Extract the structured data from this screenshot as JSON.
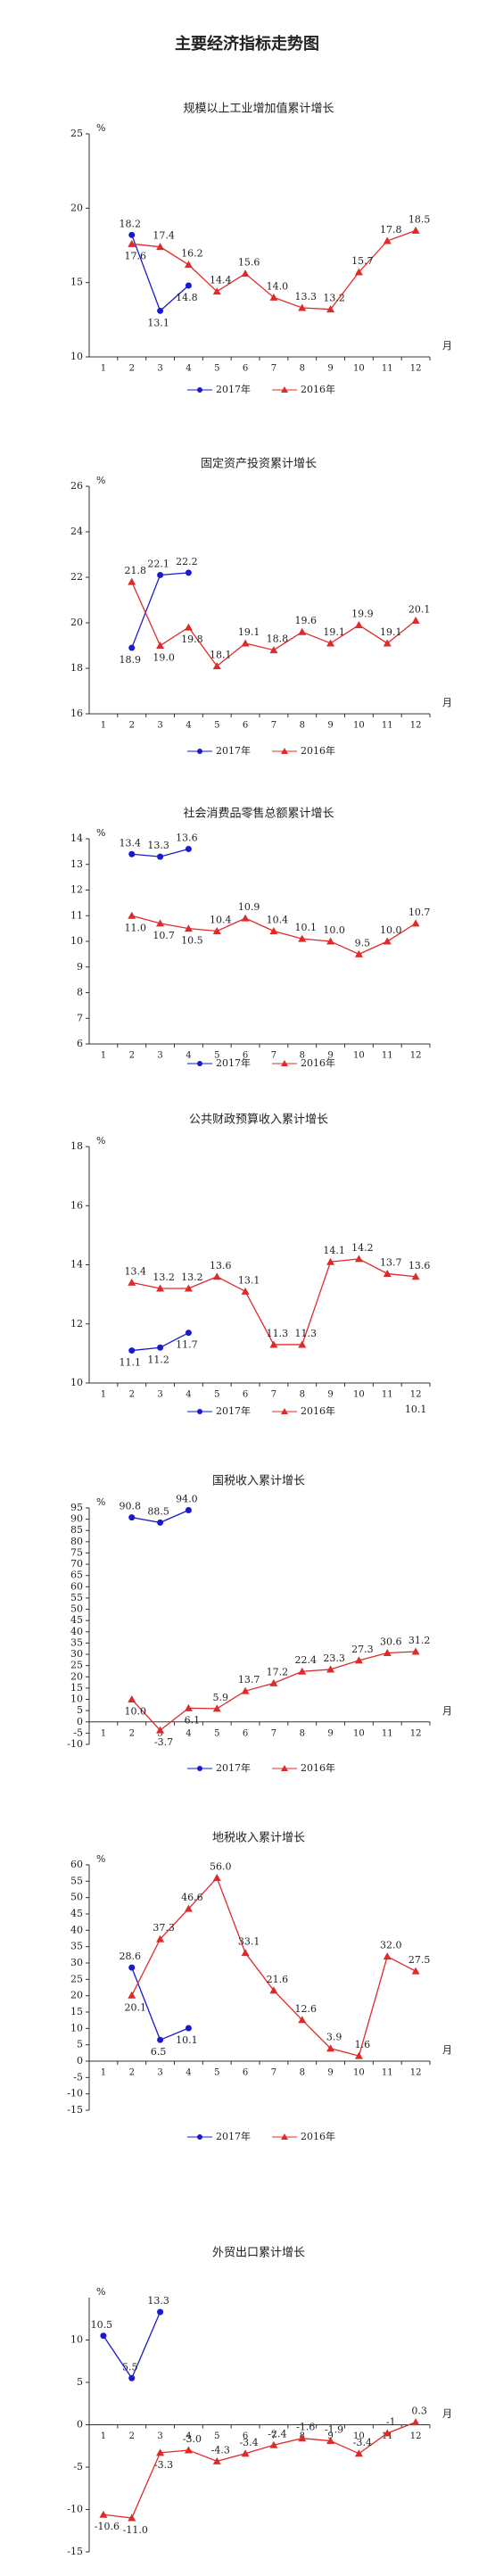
{
  "title": "主要经济指标走势图",
  "chart_data": [
    {
      "type": "line",
      "title": "规模以上工业增加值累计增长",
      "y_label": "%",
      "x_label": "月",
      "categories": [
        "1",
        "2",
        "3",
        "4",
        "5",
        "6",
        "7",
        "8",
        "9",
        "10",
        "11",
        "12"
      ],
      "ylim": [
        10,
        25
      ],
      "yticks": [
        10,
        15,
        20,
        25
      ],
      "series": [
        {
          "name": "2017年",
          "color": "#1a1acc",
          "values": [
            null,
            18.2,
            13.1,
            14.8,
            null,
            null,
            null,
            null,
            null,
            null,
            null,
            null
          ],
          "value_labels": [
            null,
            "18.2",
            "13.1",
            "14.8",
            null,
            null,
            null,
            null,
            null,
            null,
            null,
            null
          ]
        },
        {
          "name": "2016年",
          "color": "#e02a2a",
          "values": [
            null,
            17.6,
            17.4,
            16.2,
            14.4,
            15.6,
            14.0,
            13.3,
            13.2,
            15.7,
            17.8,
            18.5
          ],
          "value_labels": [
            null,
            "17.6",
            "17.4",
            "16.2",
            "14.4",
            "15.6",
            "14.0",
            "13.3",
            "13.2",
            "15.7",
            "17.8",
            "18.5"
          ]
        }
      ]
    },
    {
      "type": "line",
      "title": "固定资产投资累计增长",
      "y_label": "%",
      "x_label": "月",
      "categories": [
        "1",
        "2",
        "3",
        "4",
        "5",
        "6",
        "7",
        "8",
        "9",
        "10",
        "11",
        "12"
      ],
      "ylim": [
        16,
        26
      ],
      "yticks": [
        16,
        18,
        20,
        22,
        24,
        26
      ],
      "series": [
        {
          "name": "2017年",
          "color": "#1a1acc",
          "values": [
            null,
            18.9,
            22.1,
            22.2,
            null,
            null,
            null,
            null,
            null,
            null,
            null,
            null
          ],
          "value_labels": [
            null,
            "18.9",
            "22.1",
            "22.2",
            null,
            null,
            null,
            null,
            null,
            null,
            null,
            null
          ]
        },
        {
          "name": "2016年",
          "color": "#e02a2a",
          "values": [
            null,
            21.8,
            19.0,
            19.8,
            18.1,
            19.1,
            18.8,
            19.6,
            19.1,
            19.9,
            19.1,
            20.1
          ],
          "value_labels": [
            null,
            "21.8",
            "19.0",
            "19.8",
            "18.1",
            "19.1",
            "18.8",
            "19.6",
            "19.1",
            "19.9",
            "19.1",
            "20.1"
          ]
        }
      ]
    },
    {
      "type": "line",
      "title": "社会消费品零售总额累计增长",
      "y_label": "%",
      "categories": [
        "1",
        "2",
        "3",
        "4",
        "5",
        "6",
        "7",
        "8",
        "9",
        "10",
        "11",
        "12"
      ],
      "ylim": [
        6,
        14
      ],
      "yticks": [
        6,
        7,
        8,
        9,
        10,
        11,
        12,
        13,
        14
      ],
      "series": [
        {
          "name": "2017年",
          "color": "#1a1acc",
          "values": [
            null,
            13.4,
            13.3,
            13.6,
            null,
            null,
            null,
            null,
            null,
            null,
            null,
            null
          ],
          "value_labels": [
            null,
            "13.4",
            "13.3",
            "13.6",
            null,
            null,
            null,
            null,
            null,
            null,
            null,
            null
          ]
        },
        {
          "name": "2016年",
          "color": "#e02a2a",
          "values": [
            null,
            11.0,
            10.7,
            10.5,
            10.4,
            10.9,
            10.4,
            10.1,
            10.0,
            9.5,
            10.0,
            10.7
          ],
          "value_labels": [
            null,
            "11.0",
            "10.7",
            "10.5",
            "10.4",
            "10.9",
            "10.4",
            "10.1",
            "10.0",
            "9.5",
            "10.0",
            "10.7"
          ]
        }
      ]
    },
    {
      "type": "line",
      "title": "公共财政预算收入累计增长",
      "y_label": "%",
      "categories": [
        "1",
        "2",
        "3",
        "4",
        "5",
        "6",
        "7",
        "8",
        "9",
        "10",
        "11",
        "12"
      ],
      "ylim": [
        10,
        18
      ],
      "yticks": [
        10,
        12,
        14,
        16,
        18
      ],
      "annotations": [
        "10.1"
      ],
      "series": [
        {
          "name": "2017年",
          "color": "#1a1acc",
          "values": [
            null,
            11.1,
            11.2,
            11.7,
            null,
            null,
            null,
            null,
            null,
            null,
            null,
            null
          ],
          "value_labels": [
            null,
            "11.1",
            "11.2",
            "11.7",
            null,
            null,
            null,
            null,
            null,
            null,
            null,
            null
          ]
        },
        {
          "name": "2016年",
          "color": "#e02a2a",
          "values": [
            null,
            13.4,
            13.2,
            13.2,
            13.6,
            13.1,
            11.3,
            11.3,
            14.1,
            14.2,
            13.7,
            13.6
          ],
          "value_labels": [
            null,
            "13.4",
            "13.2",
            "13.2",
            "13.6",
            "13.1",
            "11.3",
            "11.3",
            "14.1",
            "14.2",
            "13.7",
            "13.6"
          ]
        }
      ]
    },
    {
      "type": "line",
      "title": "国税收入累计增长",
      "y_label": "%",
      "x_label": "月",
      "categories": [
        "1",
        "2",
        "3",
        "4",
        "5",
        "6",
        "7",
        "8",
        "9",
        "10",
        "11",
        "12"
      ],
      "ylim": [
        -10,
        95
      ],
      "yticks": [
        -10,
        -5,
        0,
        5,
        10,
        15,
        20,
        25,
        30,
        35,
        40,
        45,
        50,
        55,
        60,
        65,
        70,
        75,
        80,
        85,
        90,
        95
      ],
      "series": [
        {
          "name": "2017年",
          "color": "#1a1acc",
          "values": [
            null,
            90.8,
            88.5,
            94.0,
            null,
            null,
            null,
            null,
            null,
            null,
            null,
            null
          ],
          "value_labels": [
            null,
            "90.8",
            "88.5",
            "94.0",
            null,
            null,
            null,
            null,
            null,
            null,
            null,
            null
          ]
        },
        {
          "name": "2016年",
          "color": "#e02a2a",
          "values": [
            null,
            10.0,
            -3.7,
            6.1,
            5.9,
            13.7,
            17.2,
            22.4,
            23.3,
            27.3,
            30.6,
            31.2
          ],
          "value_labels": [
            null,
            "10.0",
            "-3.7",
            "6.1",
            "5.9",
            "13.7",
            "17.2",
            "22.4",
            "23.3",
            "27.3",
            "30.6",
            "31.2"
          ]
        }
      ]
    },
    {
      "type": "line",
      "title": "地税收入累计增长",
      "y_label": "%",
      "x_label": "月",
      "categories": [
        "1",
        "2",
        "3",
        "4",
        "5",
        "6",
        "7",
        "8",
        "9",
        "10",
        "11",
        "12"
      ],
      "ylim": [
        -15,
        60
      ],
      "yticks": [
        -15,
        -10,
        -5,
        0,
        5,
        10,
        15,
        20,
        25,
        30,
        35,
        40,
        45,
        50,
        55,
        60
      ],
      "series": [
        {
          "name": "2017年",
          "color": "#1a1acc",
          "values": [
            null,
            28.6,
            6.5,
            10.1,
            null,
            null,
            null,
            null,
            null,
            null,
            null,
            null
          ],
          "value_labels": [
            null,
            "28.6",
            "6.5",
            "10.1",
            null,
            null,
            null,
            null,
            null,
            null,
            null,
            null
          ]
        },
        {
          "name": "2016年",
          "color": "#e02a2a",
          "values": [
            null,
            20.1,
            37.3,
            46.6,
            56.0,
            33.1,
            21.6,
            12.6,
            3.9,
            1.6,
            32.0,
            27.5
          ],
          "value_labels": [
            null,
            "20.1",
            "37.3",
            "46.6",
            "56.0",
            "33.1",
            "21.6",
            "12.6",
            "3.9",
            "1.6",
            "32.0",
            "27.5"
          ]
        }
      ]
    },
    {
      "type": "line",
      "title": "外贸出口累计增长",
      "y_label": "%",
      "x_label": "月",
      "legend": false,
      "categories": [
        "1",
        "2",
        "3",
        "4",
        "5",
        "6",
        "7",
        "8",
        "9",
        "10",
        "11",
        "12"
      ],
      "ylim": [
        -15,
        15
      ],
      "yticks": [
        -15,
        -10,
        -5,
        0,
        5,
        10
      ],
      "series": [
        {
          "name": "2017年",
          "color": "#1a1acc",
          "values": [
            10.5,
            5.5,
            13.3,
            null,
            null,
            null,
            null,
            null,
            null,
            null,
            null,
            null
          ],
          "value_labels": [
            "10.5",
            "5.5",
            "13.3",
            null,
            null,
            null,
            null,
            null,
            null,
            null,
            null,
            null
          ]
        },
        {
          "name": "2016年",
          "color": "#e02a2a",
          "values": [
            -10.6,
            -11.0,
            -3.3,
            -3.0,
            -4.3,
            -3.4,
            -2.4,
            -1.6,
            -1.9,
            -3.4,
            -1,
            0.3
          ],
          "value_labels": [
            "-10.6",
            "-11.0",
            "-3.3",
            "-3.0",
            "-4.3",
            "-3.4",
            "-2.4",
            "-1.6",
            "-1.9",
            "-3.4",
            "-1",
            "0.3"
          ]
        }
      ]
    }
  ]
}
